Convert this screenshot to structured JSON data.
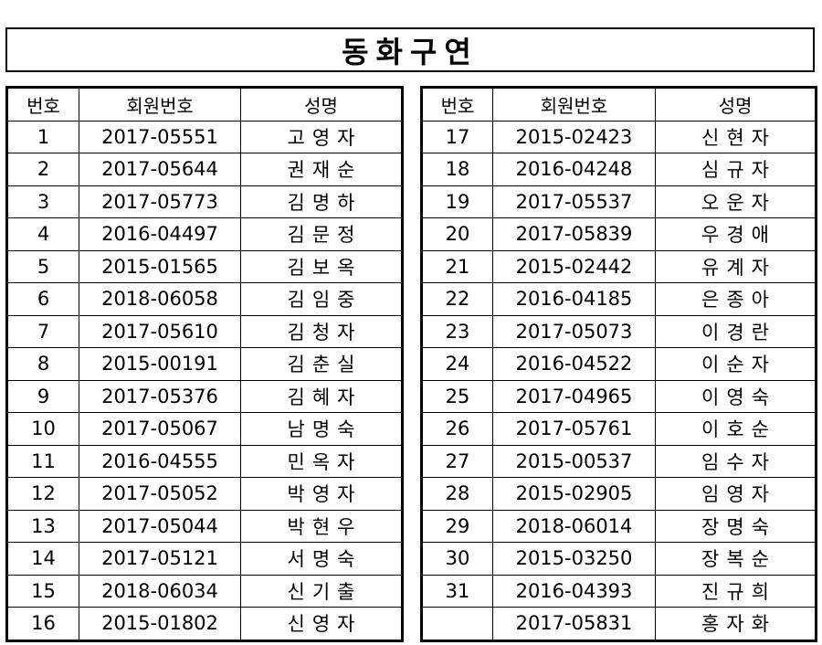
{
  "title": "동화구연",
  "columns": [
    "번호",
    "회원번호",
    "성명"
  ],
  "left_rows": [
    {
      "no": "1",
      "id": "2017-05551",
      "name": "고영자"
    },
    {
      "no": "2",
      "id": "2017-05644",
      "name": "권재순"
    },
    {
      "no": "3",
      "id": "2017-05773",
      "name": "김명하"
    },
    {
      "no": "4",
      "id": "2016-04497",
      "name": "김문정"
    },
    {
      "no": "5",
      "id": "2015-01565",
      "name": "김보옥"
    },
    {
      "no": "6",
      "id": "2018-06058",
      "name": "김임중"
    },
    {
      "no": "7",
      "id": "2017-05610",
      "name": "김청자"
    },
    {
      "no": "8",
      "id": "2015-00191",
      "name": "김춘실"
    },
    {
      "no": "9",
      "id": "2017-05376",
      "name": "김혜자"
    },
    {
      "no": "10",
      "id": "2017-05067",
      "name": "남명숙"
    },
    {
      "no": "11",
      "id": "2016-04555",
      "name": "민옥자"
    },
    {
      "no": "12",
      "id": "2017-05052",
      "name": "박영자"
    },
    {
      "no": "13",
      "id": "2017-05044",
      "name": "박현우"
    },
    {
      "no": "14",
      "id": "2017-05121",
      "name": "서명숙"
    },
    {
      "no": "15",
      "id": "2018-06034",
      "name": "신기출"
    },
    {
      "no": "16",
      "id": "2015-01802",
      "name": "신영자"
    }
  ],
  "right_rows": [
    {
      "no": "17",
      "id": "2015-02423",
      "name": "신현자"
    },
    {
      "no": "18",
      "id": "2016-04248",
      "name": "심규자"
    },
    {
      "no": "19",
      "id": "2017-05537",
      "name": "오운자"
    },
    {
      "no": "20",
      "id": "2017-05839",
      "name": "우경애"
    },
    {
      "no": "21",
      "id": "2015-02442",
      "name": "유계자"
    },
    {
      "no": "22",
      "id": "2016-04185",
      "name": "은종아"
    },
    {
      "no": "23",
      "id": "2017-05073",
      "name": "이경란"
    },
    {
      "no": "24",
      "id": "2016-04522",
      "name": "이순자"
    },
    {
      "no": "25",
      "id": "2017-04965",
      "name": "이영숙"
    },
    {
      "no": "26",
      "id": "2017-05761",
      "name": "이호순"
    },
    {
      "no": "27",
      "id": "2015-00537",
      "name": "임수자"
    },
    {
      "no": "28",
      "id": "2015-02905",
      "name": "임영자"
    },
    {
      "no": "29",
      "id": "2018-06014",
      "name": "장명숙"
    },
    {
      "no": "30",
      "id": "2015-03250",
      "name": "장복순"
    },
    {
      "no": "31",
      "id": "2016-04393",
      "name": "진규희"
    },
    {
      "no": "",
      "id": "2017-05831",
      "name": "홍자화"
    }
  ]
}
